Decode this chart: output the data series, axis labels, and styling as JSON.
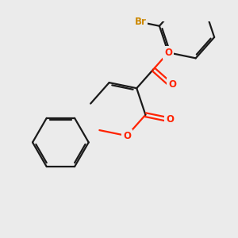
{
  "bg_color": "#ebebeb",
  "bond_color": "#1a1a1a",
  "o_color": "#ff2200",
  "br_color": "#cc8800",
  "line_width": 1.6,
  "dbo": 0.055,
  "figsize": [
    3.0,
    3.0
  ],
  "dpi": 100,
  "xlim": [
    -2.8,
    3.2
  ],
  "ylim": [
    -2.5,
    2.5
  ]
}
